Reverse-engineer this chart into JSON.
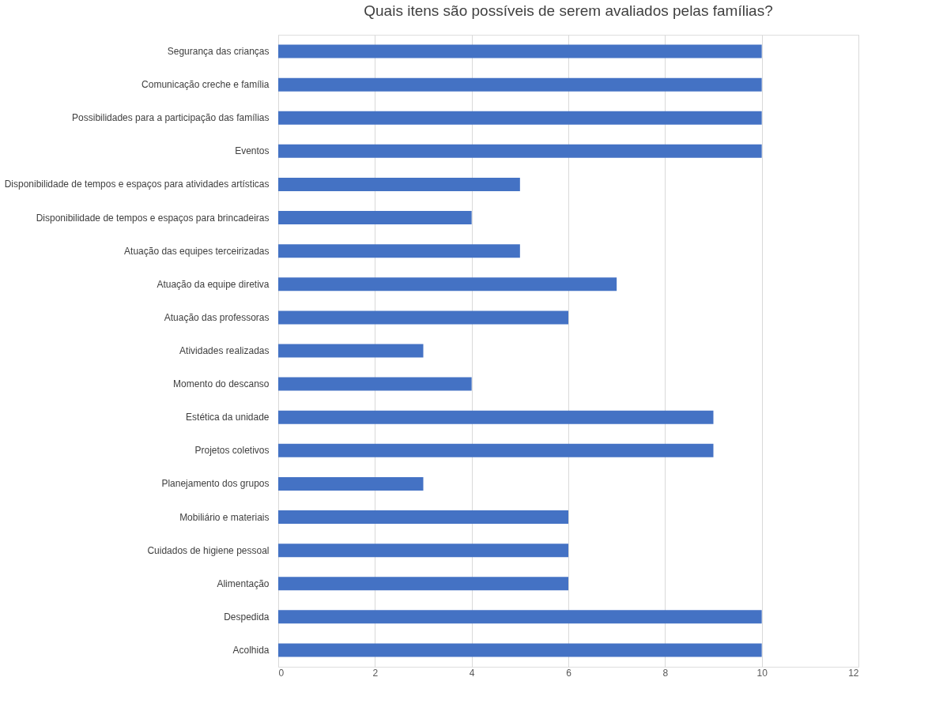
{
  "chart_data": {
    "type": "bar",
    "orientation": "horizontal",
    "title": "Quais itens são possíveis de serem avaliados pelas famílias?",
    "categories": [
      "Segurança das crianças",
      "Comunicação creche e família",
      "Possibilidades para a participação das famílias",
      "Eventos",
      "Disponibilidade de tempos e espaços para atividades artísticas",
      "Disponibilidade de tempos e espaços para brincadeiras",
      "Atuação das equipes terceirizadas",
      "Atuação da equipe diretiva",
      "Atuação das professoras",
      "Atividades realizadas",
      "Momento do descanso",
      "Estética da unidade",
      "Projetos coletivos",
      "Planejamento dos grupos",
      "Mobiliário e materiais",
      "Cuidados de higiene pessoal",
      "Alimentação",
      "Despedida",
      "Acolhida"
    ],
    "values": [
      10,
      10,
      10,
      10,
      5,
      4,
      5,
      7,
      6,
      3,
      4,
      9,
      9,
      3,
      6,
      6,
      6,
      10,
      10
    ],
    "color": "#4472c4",
    "xlim": [
      0,
      12
    ],
    "xticks": [
      0,
      2,
      4,
      6,
      8,
      10,
      12
    ],
    "grid": "x"
  }
}
